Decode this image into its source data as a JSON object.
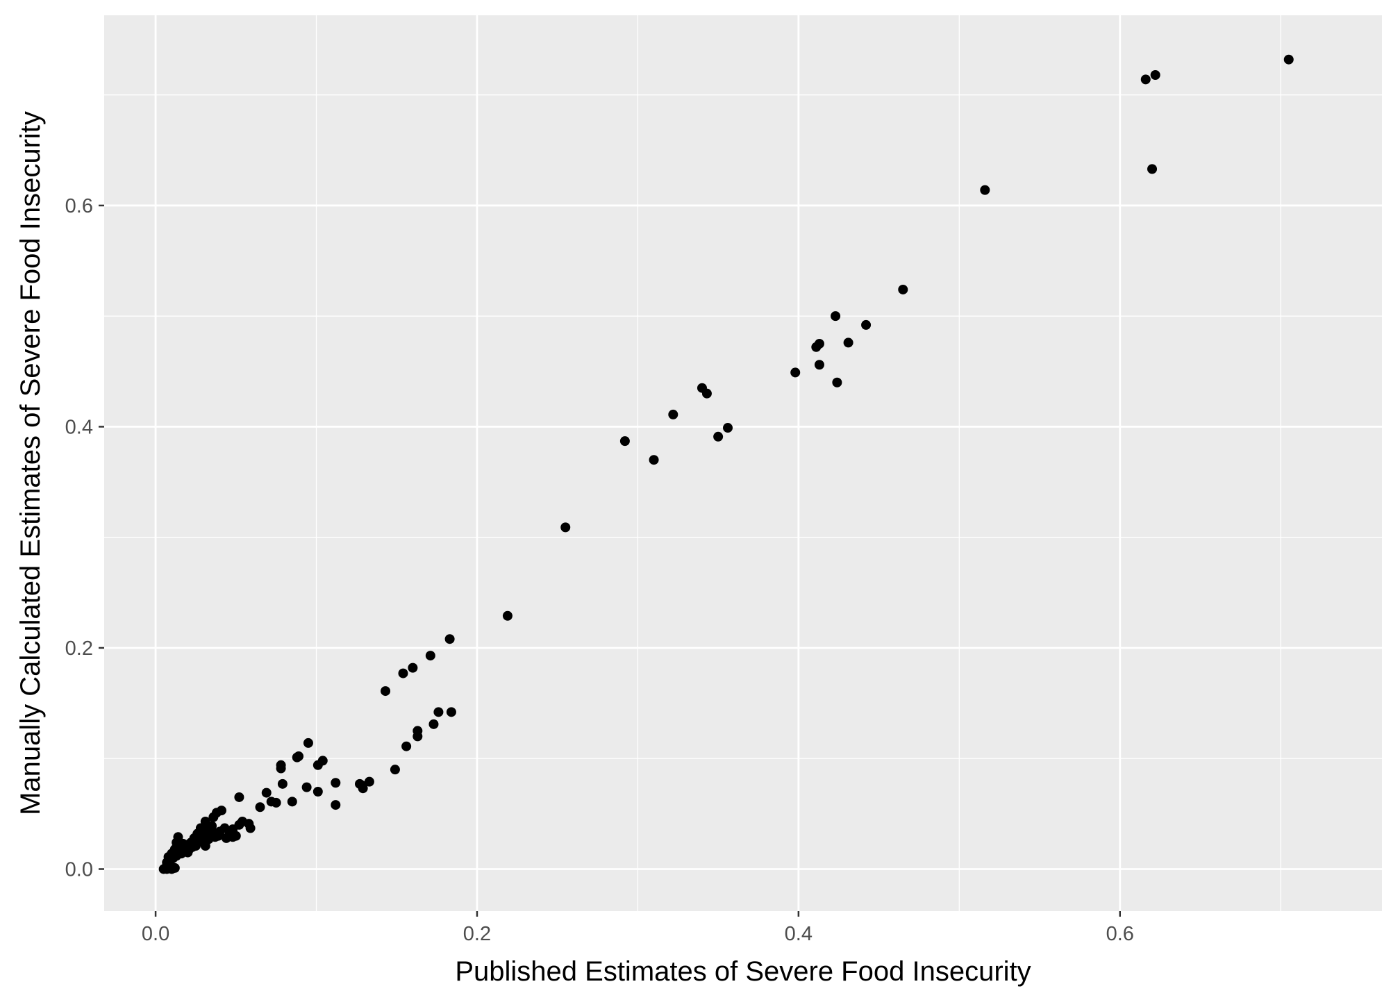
{
  "chart_data": {
    "type": "scatter",
    "xlabel": "Published Estimates of Severe Food Insecurity",
    "ylabel": "Manually Calculated Estimates of Severe Food Insecurity",
    "xlim": [
      -0.032,
      0.763
    ],
    "ylim": [
      -0.038,
      0.772
    ],
    "x_ticks": [
      {
        "value": 0.0,
        "label": "0.0"
      },
      {
        "value": 0.2,
        "label": "0.2"
      },
      {
        "value": 0.4,
        "label": "0.4"
      },
      {
        "value": 0.6,
        "label": "0.6"
      }
    ],
    "y_ticks": [
      {
        "value": 0.0,
        "label": "0.0"
      },
      {
        "value": 0.2,
        "label": "0.2"
      },
      {
        "value": 0.4,
        "label": "0.4"
      },
      {
        "value": 0.6,
        "label": "0.6"
      }
    ],
    "minor_x": [
      0.1,
      0.3,
      0.5,
      0.7
    ],
    "minor_y": [
      0.1,
      0.3,
      0.5,
      0.7
    ],
    "grid": true,
    "panel_color": "#ebebeb",
    "grid_color": "#ffffff",
    "point_color": "#000000",
    "points": [
      [
        0.705,
        0.732
      ],
      [
        0.622,
        0.718
      ],
      [
        0.616,
        0.714
      ],
      [
        0.62,
        0.633
      ],
      [
        0.516,
        0.614
      ],
      [
        0.465,
        0.524
      ],
      [
        0.423,
        0.5
      ],
      [
        0.442,
        0.492
      ],
      [
        0.413,
        0.475
      ],
      [
        0.411,
        0.472
      ],
      [
        0.431,
        0.476
      ],
      [
        0.413,
        0.456
      ],
      [
        0.398,
        0.449
      ],
      [
        0.424,
        0.44
      ],
      [
        0.34,
        0.435
      ],
      [
        0.343,
        0.43
      ],
      [
        0.322,
        0.411
      ],
      [
        0.356,
        0.399
      ],
      [
        0.35,
        0.391
      ],
      [
        0.292,
        0.387
      ],
      [
        0.31,
        0.37
      ],
      [
        0.255,
        0.309
      ],
      [
        0.219,
        0.229
      ],
      [
        0.183,
        0.208
      ],
      [
        0.171,
        0.193
      ],
      [
        0.16,
        0.182
      ],
      [
        0.154,
        0.177
      ],
      [
        0.143,
        0.161
      ],
      [
        0.176,
        0.142
      ],
      [
        0.184,
        0.142
      ],
      [
        0.173,
        0.131
      ],
      [
        0.163,
        0.125
      ],
      [
        0.163,
        0.12
      ],
      [
        0.156,
        0.111
      ],
      [
        0.149,
        0.09
      ],
      [
        0.095,
        0.114
      ],
      [
        0.089,
        0.102
      ],
      [
        0.088,
        0.101
      ],
      [
        0.104,
        0.098
      ],
      [
        0.101,
        0.094
      ],
      [
        0.078,
        0.094
      ],
      [
        0.078,
        0.091
      ],
      [
        0.079,
        0.077
      ],
      [
        0.094,
        0.074
      ],
      [
        0.101,
        0.07
      ],
      [
        0.112,
        0.078
      ],
      [
        0.112,
        0.058
      ],
      [
        0.085,
        0.061
      ],
      [
        0.075,
        0.06
      ],
      [
        0.072,
        0.061
      ],
      [
        0.069,
        0.069
      ],
      [
        0.065,
        0.056
      ],
      [
        0.127,
        0.077
      ],
      [
        0.133,
        0.079
      ],
      [
        0.129,
        0.073
      ],
      [
        0.128,
        0.076
      ],
      [
        0.052,
        0.065
      ],
      [
        0.058,
        0.041
      ],
      [
        0.059,
        0.037
      ],
      [
        0.054,
        0.043
      ],
      [
        0.052,
        0.04
      ],
      [
        0.048,
        0.036
      ],
      [
        0.046,
        0.031
      ],
      [
        0.048,
        0.029
      ],
      [
        0.044,
        0.028
      ],
      [
        0.041,
        0.053
      ],
      [
        0.038,
        0.051
      ],
      [
        0.039,
        0.03
      ],
      [
        0.036,
        0.047
      ],
      [
        0.035,
        0.039
      ],
      [
        0.036,
        0.033
      ],
      [
        0.037,
        0.029
      ],
      [
        0.031,
        0.043
      ],
      [
        0.032,
        0.035
      ],
      [
        0.03,
        0.03
      ],
      [
        0.031,
        0.021
      ],
      [
        0.028,
        0.037
      ],
      [
        0.026,
        0.032
      ],
      [
        0.027,
        0.025
      ],
      [
        0.025,
        0.021
      ],
      [
        0.024,
        0.028
      ],
      [
        0.022,
        0.024
      ],
      [
        0.021,
        0.018
      ],
      [
        0.019,
        0.022
      ],
      [
        0.018,
        0.016
      ],
      [
        0.017,
        0.023
      ],
      [
        0.016,
        0.014
      ],
      [
        0.014,
        0.029
      ],
      [
        0.014,
        0.02
      ],
      [
        0.013,
        0.024
      ],
      [
        0.013,
        0.012
      ],
      [
        0.012,
        0.018
      ],
      [
        0.011,
        0.01
      ],
      [
        0.01,
        0.014
      ],
      [
        0.009,
        0.007
      ],
      [
        0.009,
        0.003
      ],
      [
        0.008,
        0.011
      ],
      [
        0.007,
        0.006
      ],
      [
        0.006,
        0.001
      ],
      [
        0.005,
        0.0
      ],
      [
        0.007,
        0.0
      ],
      [
        0.008,
        0.002
      ],
      [
        0.01,
        0.0
      ],
      [
        0.012,
        0.001
      ],
      [
        0.015,
        0.017
      ],
      [
        0.02,
        0.015
      ],
      [
        0.023,
        0.02
      ],
      [
        0.029,
        0.027
      ],
      [
        0.033,
        0.027
      ],
      [
        0.04,
        0.034
      ],
      [
        0.043,
        0.037
      ],
      [
        0.05,
        0.03
      ]
    ]
  }
}
